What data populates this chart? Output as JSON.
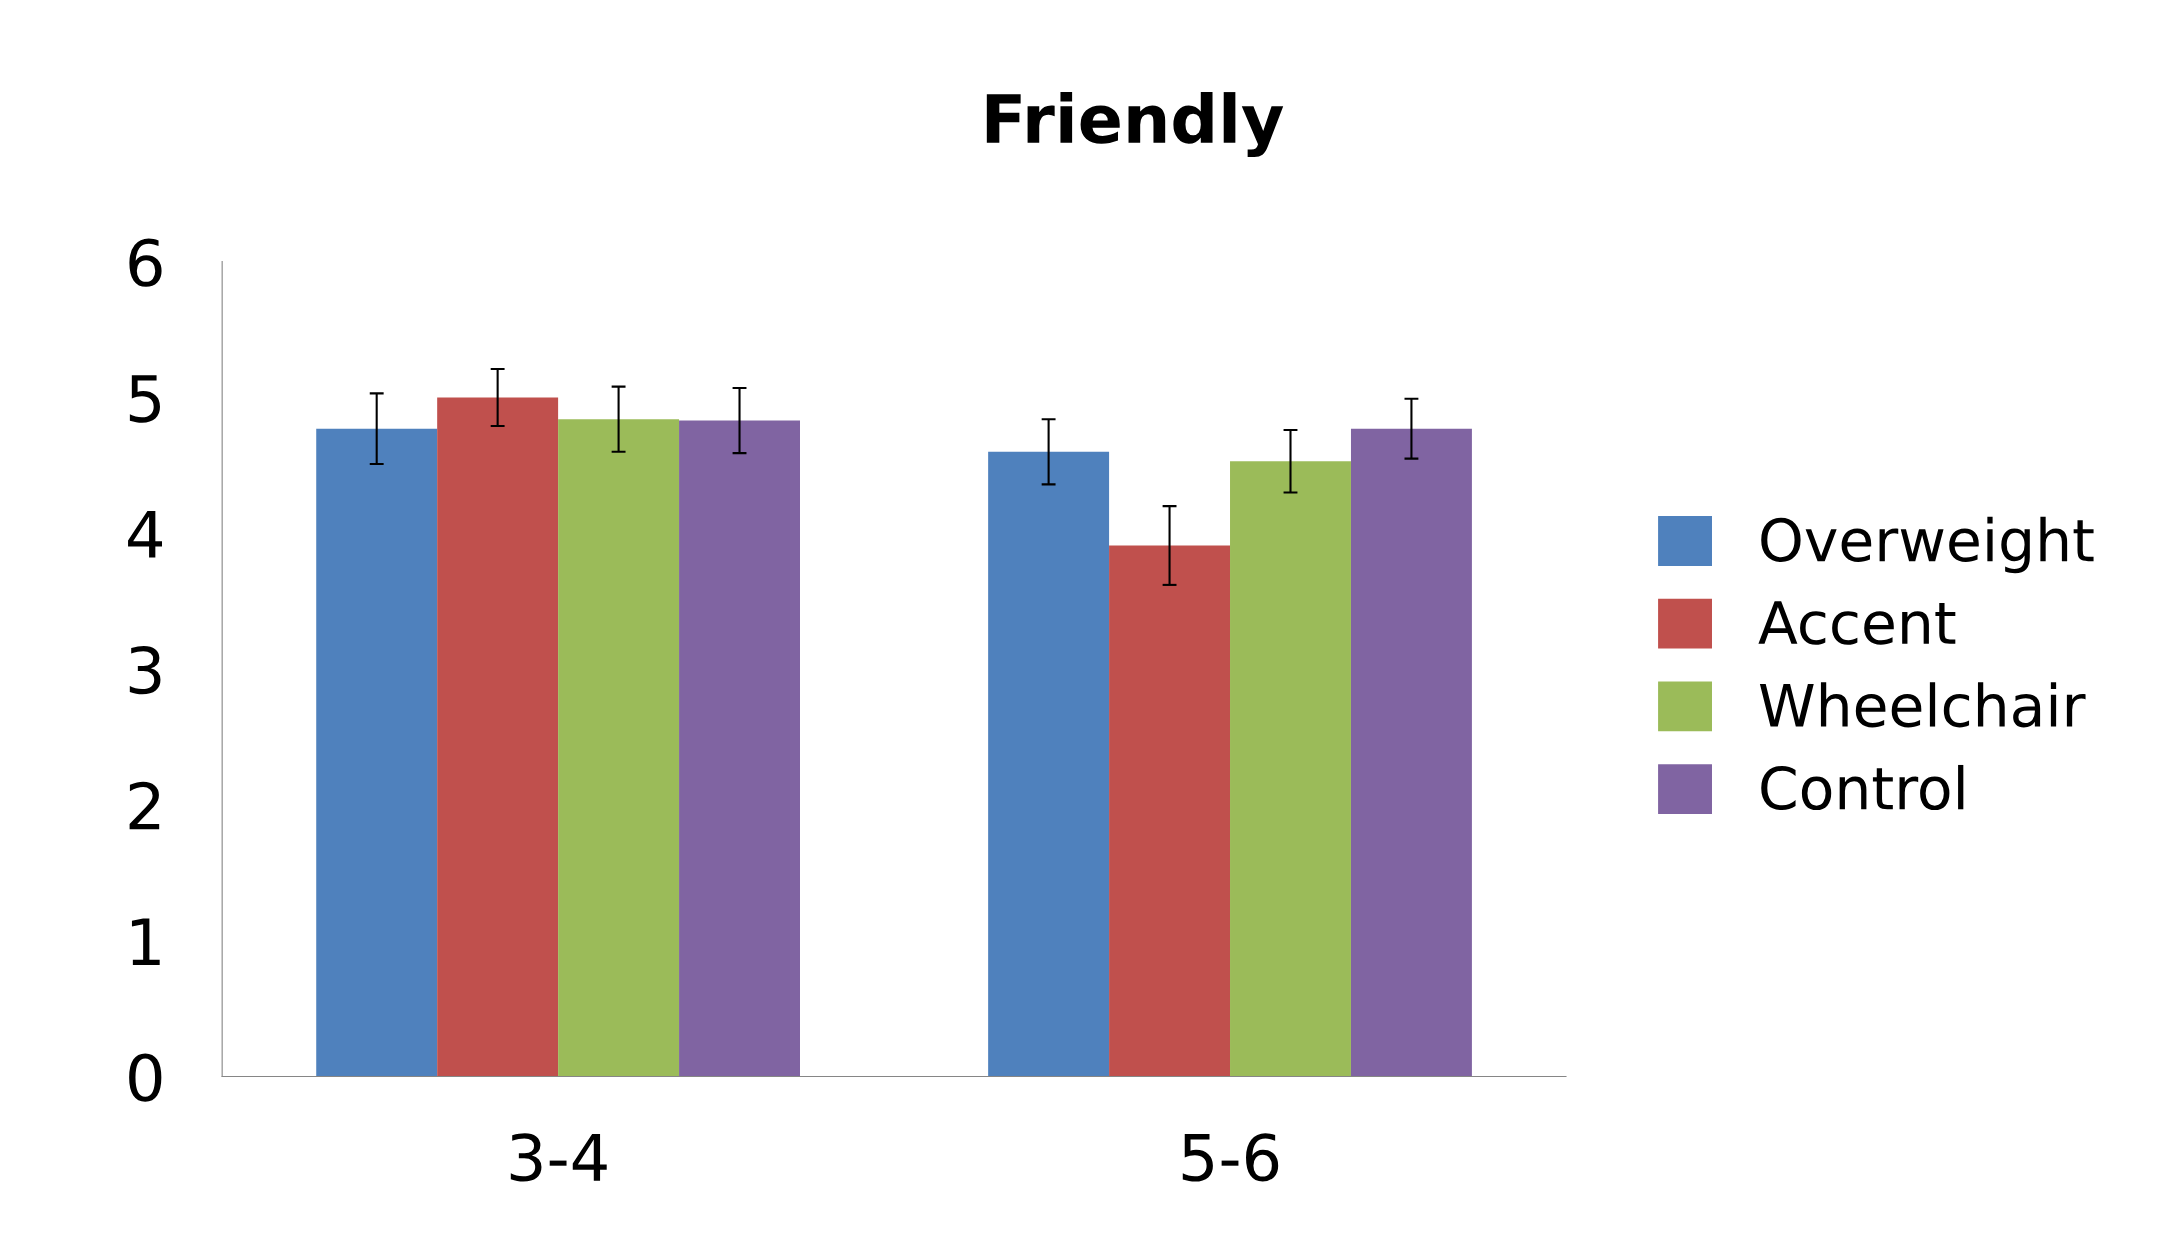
{
  "chart_data": {
    "type": "bar",
    "title": "Friendly",
    "categories": [
      "3-4",
      "5-6"
    ],
    "series": [
      {
        "name": "Overweight",
        "color": "#4f81bd",
        "values": [
          4.77,
          4.6
        ],
        "errors": [
          0.26,
          0.24
        ]
      },
      {
        "name": "Accent",
        "color": "#c0504d",
        "values": [
          5.0,
          3.91
        ],
        "errors": [
          0.21,
          0.29
        ]
      },
      {
        "name": "Wheelchair",
        "color": "#9bbb59",
        "values": [
          4.84,
          4.53
        ],
        "errors": [
          0.24,
          0.23
        ]
      },
      {
        "name": "Control",
        "color": "#8064a2",
        "values": [
          4.83,
          4.77
        ],
        "errors": [
          0.24,
          0.22
        ]
      }
    ],
    "ylim": [
      0,
      6
    ],
    "yticks": [
      0,
      1,
      2,
      3,
      4,
      5,
      6
    ],
    "grid": false,
    "legend": "right"
  }
}
